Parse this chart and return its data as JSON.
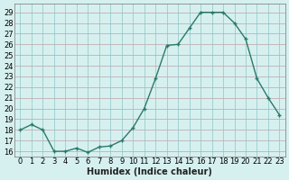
{
  "x": [
    0,
    1,
    2,
    3,
    4,
    5,
    6,
    7,
    8,
    9,
    10,
    11,
    12,
    13,
    14,
    15,
    16,
    17,
    18,
    19,
    20,
    21,
    22,
    23
  ],
  "y": [
    18,
    18.5,
    18,
    16,
    16,
    16.3,
    15.9,
    16.4,
    16.5,
    17,
    18.2,
    20,
    22.8,
    25.9,
    26,
    27.5,
    29,
    29,
    29,
    28,
    26.5,
    22.8,
    21,
    19.4
  ],
  "line_color": "#2a7a6a",
  "marker_color": "#2a7a6a",
  "bg_color": "#d6f0f0",
  "plot_bg_color": "#d6f0f0",
  "hgrid_color": "#c0a0a8",
  "vgrid_color": "#90c4c4",
  "xlabel": "Humidex (Indice chaleur)",
  "ylabel_ticks": [
    16,
    17,
    18,
    19,
    20,
    21,
    22,
    23,
    24,
    25,
    26,
    27,
    28,
    29
  ],
  "ylim": [
    15.5,
    29.8
  ],
  "xlim": [
    -0.5,
    23.5
  ],
  "xlabel_fontsize": 7,
  "tick_fontsize": 6,
  "line_width": 1.0,
  "marker_size": 3
}
